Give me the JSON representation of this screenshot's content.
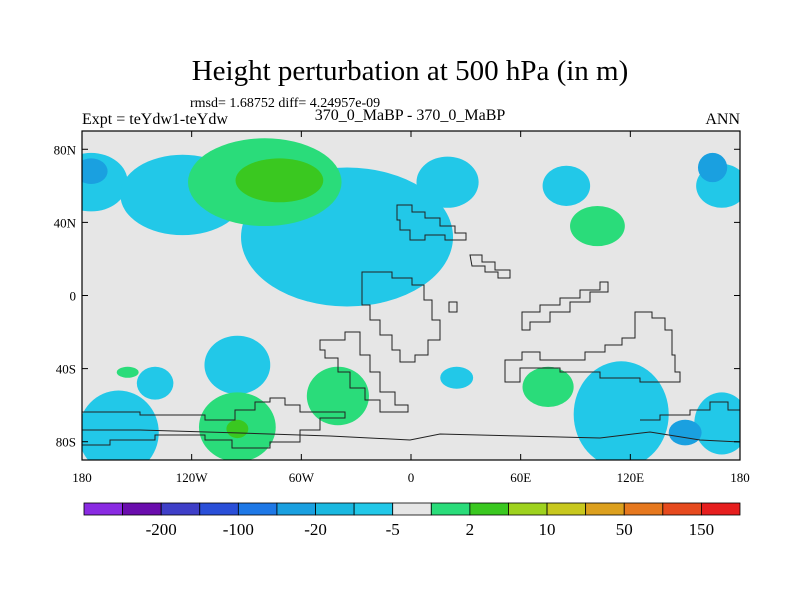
{
  "chart_data": {
    "type": "heatmap",
    "title": "Height perturbation at 500 hPa (in m)",
    "stats_label": "rmsd= 1.68752 diff= 4.24957e-09",
    "experiment_label": "Expt = teYdw1-teYdw",
    "period_label": "370_0_MaBP - 370_0_MaBP",
    "season_label": "ANN",
    "x_axis": {
      "range": [
        -180,
        180
      ],
      "ticks": [
        -180,
        -120,
        -60,
        0,
        60,
        120,
        180
      ],
      "tick_labels": [
        "180",
        "120W",
        "60W",
        "0",
        "60E",
        "120E",
        "180"
      ]
    },
    "y_axis": {
      "range": [
        -90,
        90
      ],
      "ticks": [
        80,
        40,
        0,
        -40,
        -80
      ],
      "tick_labels": [
        "80N",
        "40N",
        "0",
        "40S",
        "80S"
      ]
    },
    "colorbar": {
      "colors": [
        "#8a2be2",
        "#6a0dad",
        "#3f3fc8",
        "#2a4fd8",
        "#1e78e6",
        "#1aa0e0",
        "#1ab8e0",
        "#22c8e8",
        "#e6e6e6",
        "#2adc7a",
        "#3ac820",
        "#9ed21e",
        "#c8c81e",
        "#dca01e",
        "#e6781e",
        "#e64a1e",
        "#e61e1e"
      ],
      "labels": [
        "-200",
        "-100",
        "-20",
        "-5",
        "2",
        "10",
        "50",
        "150"
      ]
    },
    "fields": [
      {
        "level": -5,
        "color": "#22c8e8",
        "centers": [
          [
            -175,
            62
          ],
          [
            -125,
            55
          ],
          [
            -35,
            32
          ],
          [
            20,
            62
          ],
          [
            85,
            60
          ],
          [
            170,
            60
          ],
          [
            -140,
            -48
          ],
          [
            -95,
            -38
          ],
          [
            25,
            -45
          ],
          [
            -160,
            -75
          ],
          [
            115,
            -65
          ],
          [
            170,
            -70
          ]
        ]
      },
      {
        "level": -20,
        "color": "#1aa0e0",
        "centers": [
          [
            -175,
            68
          ],
          [
            165,
            70
          ],
          [
            150,
            -75
          ]
        ]
      },
      {
        "level": 2,
        "color": "#2adc7a",
        "centers": [
          [
            -80,
            62
          ],
          [
            102,
            38
          ],
          [
            -40,
            -55
          ],
          [
            -95,
            -72
          ],
          [
            75,
            -50
          ],
          [
            -155,
            -42
          ]
        ]
      },
      {
        "level": 10,
        "color": "#3ac820",
        "centers": [
          [
            -72,
            63
          ],
          [
            -95,
            -73
          ]
        ]
      }
    ]
  }
}
